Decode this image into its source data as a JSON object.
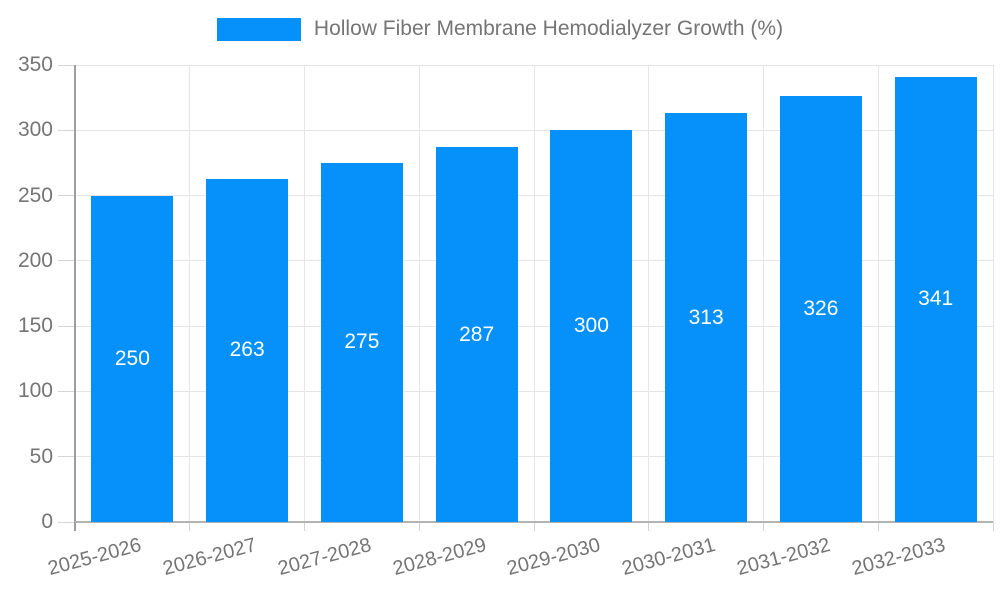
{
  "legend": {
    "label": "Hollow Fiber Membrane Hemodialyzer Growth (%)"
  },
  "chart_data": {
    "type": "bar",
    "title": "Hollow Fiber Membrane Hemodialyzer Growth (%)",
    "series_name": "Hollow Fiber Membrane Hemodialyzer Growth (%)",
    "categories": [
      "2025-2026",
      "2026-2027",
      "2027-2028",
      "2028-2029",
      "2029-2030",
      "2030-2031",
      "2031-2032",
      "2032-2033"
    ],
    "values": [
      250,
      263,
      275,
      287,
      300,
      313,
      326,
      341
    ],
    "value_labels": [
      "250",
      "263",
      "275",
      "287",
      "300",
      "313",
      "326",
      "341"
    ],
    "xlabel": "",
    "ylabel": "",
    "ylim": [
      0,
      350
    ],
    "ytick_step": 50,
    "yticks": [
      0,
      50,
      100,
      150,
      200,
      250,
      300,
      350
    ],
    "grid": true,
    "legend_position": "top-center",
    "x_label_rotation_deg": -15,
    "colors": {
      "bar": "#0691fa",
      "bar_value_text": "#ffffff",
      "axis_text": "#757575",
      "gridline": "#e6e6e6",
      "tick": "#d4d4d4",
      "y_axis_line": "#9e9e9e",
      "x_axis_line": "#b3b3b3",
      "background": "#ffffff"
    }
  }
}
